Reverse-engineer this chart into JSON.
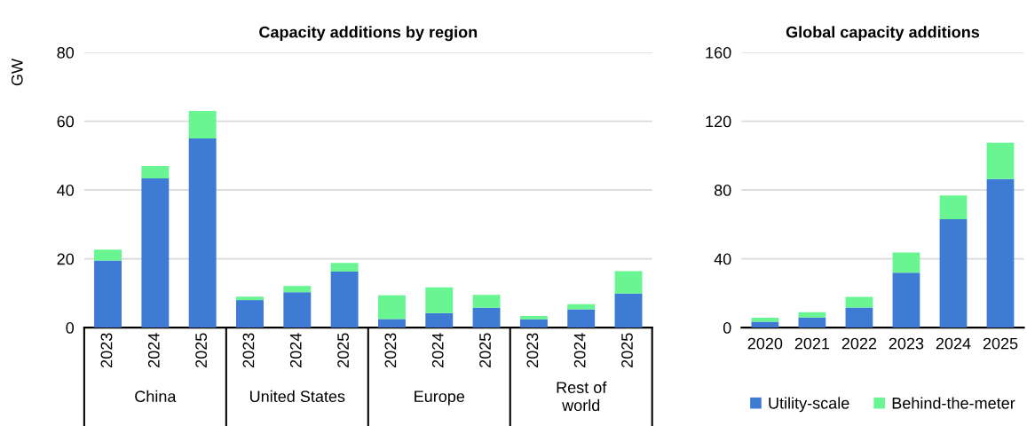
{
  "chart_data": [
    {
      "type": "bar",
      "stacked": true,
      "title": "Capacity additions by region",
      "ylabel": "GW",
      "categories": [
        "2023",
        "2024",
        "2025",
        "2023",
        "2024",
        "2025",
        "2023",
        "2024",
        "2025",
        "2023",
        "2024",
        "2025"
      ],
      "annotations": [
        "China",
        "United States",
        "Europe",
        "Rest of\nworld"
      ],
      "series": [
        {
          "color": "#3e7bd4",
          "values": [
            19.5,
            43.4,
            55,
            8,
            10.3,
            16.3,
            2.5,
            4.2,
            5.8,
            2.4,
            5.3,
            9.9
          ]
        },
        {
          "color": "#69f592",
          "values": [
            3.2,
            3.6,
            8,
            1,
            1.8,
            2.5,
            6.9,
            7.5,
            3.7,
            1,
            1.5,
            6.5
          ]
        }
      ],
      "ylim": [
        0,
        80
      ],
      "yticks": [
        0,
        20,
        40,
        60,
        80
      ],
      "grid": "y"
    },
    {
      "type": "bar",
      "stacked": true,
      "title": "Global capacity additions",
      "categories": [
        "2020",
        "2021",
        "2022",
        "2023",
        "2024",
        "2025"
      ],
      "series": [
        {
          "name": "Utility-scale",
          "color": "#3e7bd4",
          "values": [
            3.4,
            5.9,
            11.7,
            31.9,
            63,
            86.3
          ]
        },
        {
          "name": "Behind-the-meter",
          "color": "#69f592",
          "values": [
            2.3,
            3.1,
            6.1,
            11.8,
            13.8,
            21.2
          ]
        }
      ],
      "ylim": [
        0,
        160
      ],
      "yticks": [
        0,
        40,
        80,
        120,
        160
      ],
      "grid": "y",
      "legend": "bottom"
    }
  ]
}
